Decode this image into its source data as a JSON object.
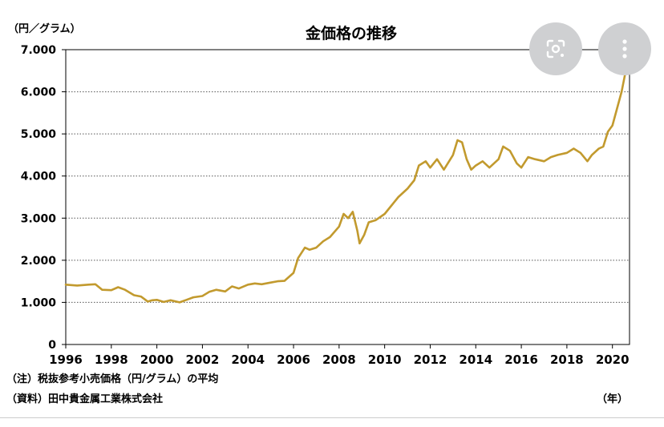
{
  "chart_data": {
    "type": "line",
    "title": "金価格の推移",
    "ylabel": "（円／グラム）",
    "xlabel": "（年）",
    "xlim": [
      1996,
      2020.75
    ],
    "ylim": [
      0,
      7000
    ],
    "xticks": [
      1996,
      1998,
      2000,
      2002,
      2004,
      2006,
      2008,
      2010,
      2012,
      2014,
      2016,
      2018,
      2020
    ],
    "yticks": [
      0,
      1000,
      2000,
      3000,
      4000,
      5000,
      6000,
      7000
    ],
    "ytick_labels": [
      "0",
      "1.000",
      "2.000",
      "3.000",
      "4.000",
      "5.000",
      "6.000",
      "7.000"
    ],
    "grid": "horizontal-dotted",
    "line_color": "#c29a2e",
    "series": [
      {
        "points": [
          [
            1996.0,
            1420
          ],
          [
            1996.5,
            1400
          ],
          [
            1997.0,
            1420
          ],
          [
            1997.3,
            1430
          ],
          [
            1997.6,
            1300
          ],
          [
            1998.0,
            1290
          ],
          [
            1998.3,
            1360
          ],
          [
            1998.6,
            1300
          ],
          [
            1999.0,
            1170
          ],
          [
            1999.3,
            1140
          ],
          [
            1999.6,
            1020
          ],
          [
            1999.8,
            1050
          ],
          [
            2000.0,
            1060
          ],
          [
            2000.3,
            1010
          ],
          [
            2000.6,
            1050
          ],
          [
            2001.0,
            1000
          ],
          [
            2001.3,
            1060
          ],
          [
            2001.6,
            1120
          ],
          [
            2002.0,
            1150
          ],
          [
            2002.3,
            1250
          ],
          [
            2002.6,
            1300
          ],
          [
            2003.0,
            1260
          ],
          [
            2003.3,
            1380
          ],
          [
            2003.6,
            1330
          ],
          [
            2004.0,
            1420
          ],
          [
            2004.3,
            1450
          ],
          [
            2004.6,
            1430
          ],
          [
            2005.0,
            1470
          ],
          [
            2005.3,
            1500
          ],
          [
            2005.6,
            1510
          ],
          [
            2006.0,
            1700
          ],
          [
            2006.2,
            2050
          ],
          [
            2006.5,
            2300
          ],
          [
            2006.7,
            2250
          ],
          [
            2007.0,
            2300
          ],
          [
            2007.3,
            2450
          ],
          [
            2007.6,
            2550
          ],
          [
            2008.0,
            2800
          ],
          [
            2008.2,
            3100
          ],
          [
            2008.4,
            3000
          ],
          [
            2008.6,
            3150
          ],
          [
            2008.8,
            2700
          ],
          [
            2008.9,
            2400
          ],
          [
            2009.1,
            2600
          ],
          [
            2009.3,
            2900
          ],
          [
            2009.6,
            2950
          ],
          [
            2010.0,
            3100
          ],
          [
            2010.3,
            3300
          ],
          [
            2010.6,
            3500
          ],
          [
            2011.0,
            3700
          ],
          [
            2011.3,
            3900
          ],
          [
            2011.5,
            4250
          ],
          [
            2011.8,
            4350
          ],
          [
            2012.0,
            4200
          ],
          [
            2012.3,
            4400
          ],
          [
            2012.6,
            4150
          ],
          [
            2013.0,
            4500
          ],
          [
            2013.2,
            4850
          ],
          [
            2013.4,
            4800
          ],
          [
            2013.6,
            4400
          ],
          [
            2013.8,
            4150
          ],
          [
            2014.0,
            4250
          ],
          [
            2014.3,
            4350
          ],
          [
            2014.6,
            4200
          ],
          [
            2015.0,
            4400
          ],
          [
            2015.2,
            4700
          ],
          [
            2015.5,
            4600
          ],
          [
            2015.8,
            4300
          ],
          [
            2016.0,
            4200
          ],
          [
            2016.3,
            4450
          ],
          [
            2016.6,
            4400
          ],
          [
            2017.0,
            4350
          ],
          [
            2017.3,
            4450
          ],
          [
            2017.6,
            4500
          ],
          [
            2018.0,
            4550
          ],
          [
            2018.3,
            4650
          ],
          [
            2018.6,
            4550
          ],
          [
            2018.9,
            4350
          ],
          [
            2019.1,
            4500
          ],
          [
            2019.4,
            4650
          ],
          [
            2019.6,
            4700
          ],
          [
            2019.8,
            5050
          ],
          [
            2020.0,
            5200
          ],
          [
            2020.2,
            5600
          ],
          [
            2020.4,
            6000
          ],
          [
            2020.55,
            6400
          ],
          [
            2020.65,
            6800
          ],
          [
            2020.75,
            6600
          ]
        ]
      }
    ],
    "notes": [
      "（注）税抜参考小売価格（円/グラム）の平均",
      "（資料）田中貴金属工業株式会社"
    ]
  },
  "overlay": {
    "lens_button_icon": "lens-icon",
    "more_button_icon": "more-vertical-icon"
  }
}
